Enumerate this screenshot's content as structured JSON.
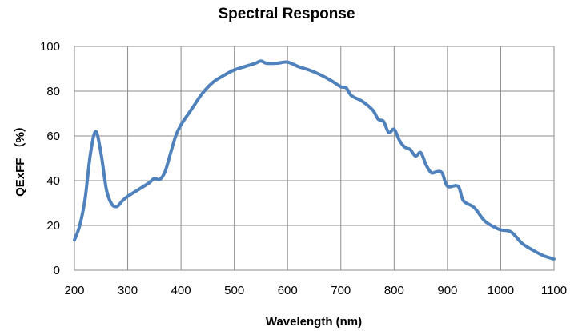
{
  "chart_data": {
    "type": "line",
    "title": "Spectral Response",
    "xlabel": "Wavelength (nm)",
    "ylabel": "QExFF （%）",
    "xlim": [
      200,
      1100
    ],
    "ylim": [
      0,
      100
    ],
    "x_ticks": [
      200,
      300,
      400,
      500,
      600,
      700,
      800,
      900,
      1000,
      1100
    ],
    "y_ticks": [
      0,
      20,
      40,
      60,
      80,
      100
    ],
    "grid": true,
    "legend": "none",
    "line_color": "#4f81bd",
    "series": [
      {
        "x": [
          200,
          210,
          220,
          230,
          240,
          250,
          260,
          270,
          280,
          290,
          300,
          320,
          340,
          350,
          360,
          370,
          380,
          390,
          400,
          420,
          440,
          460,
          480,
          500,
          520,
          540,
          550,
          560,
          580,
          600,
          620,
          640,
          660,
          680,
          700,
          710,
          720,
          740,
          760,
          770,
          780,
          790,
          800,
          810,
          820,
          830,
          840,
          850,
          860,
          870,
          880,
          890,
          900,
          920,
          930,
          950,
          970,
          990,
          1000,
          1020,
          1040,
          1060,
          1080,
          1100
        ],
        "y": [
          13.5,
          20,
          32,
          52,
          62,
          52,
          36,
          29.5,
          28.5,
          31,
          33,
          36,
          39,
          41,
          40.5,
          44,
          52,
          60,
          65,
          72,
          79,
          84,
          87,
          89.5,
          91,
          92.5,
          93.5,
          92.5,
          92.5,
          93,
          91,
          89.5,
          87.5,
          85,
          82,
          81.5,
          78,
          75.5,
          71.5,
          67.5,
          66.5,
          61.5,
          63,
          58,
          55,
          54,
          51,
          52.5,
          47,
          43.5,
          44,
          43.5,
          37.5,
          37.5,
          31,
          28,
          22,
          19,
          18,
          17,
          12,
          9,
          6.5,
          5
        ]
      }
    ]
  }
}
